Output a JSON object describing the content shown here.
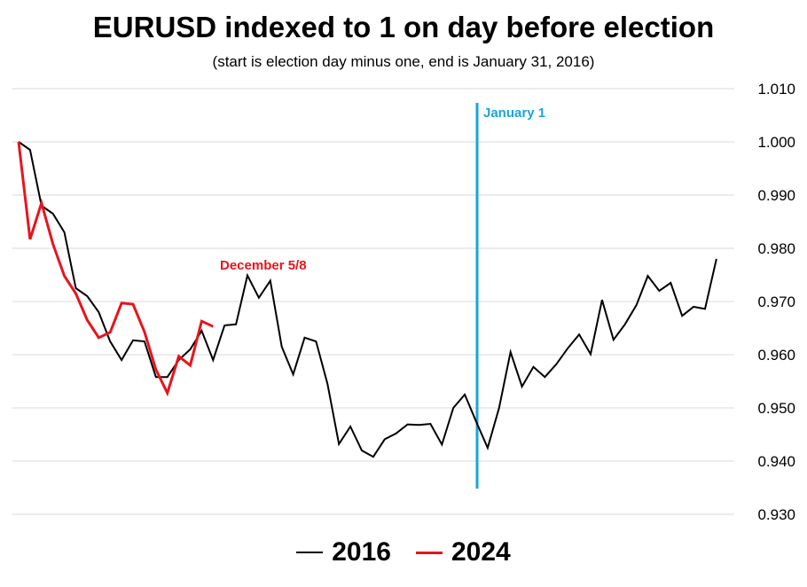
{
  "chart_data": {
    "type": "line",
    "title": "EURUSD indexed to 1 on day before election",
    "subtitle": "(start is election day minus one, end is January 31, 2016)",
    "xlabel": "",
    "ylabel": "",
    "ylim": [
      0.93,
      1.01
    ],
    "y_ticks": [
      "1.010",
      "1.000",
      "0.990",
      "0.980",
      "0.970",
      "0.960",
      "0.950",
      "0.940",
      "0.930"
    ],
    "y_tick_values": [
      1.01,
      1.0,
      0.99,
      0.98,
      0.97,
      0.96,
      0.95,
      0.94,
      0.93
    ],
    "y_axis_position": "right",
    "grid": true,
    "legend_position": "bottom",
    "x_count": 63,
    "series": [
      {
        "name": "2016",
        "color": "#000000",
        "values": [
          1.0,
          0.9985,
          0.988,
          0.9865,
          0.983,
          0.9725,
          0.971,
          0.968,
          0.9625,
          0.959,
          0.9627,
          0.9625,
          0.9558,
          0.9558,
          0.959,
          0.961,
          0.9645,
          0.959,
          0.9655,
          0.9657,
          0.9749,
          0.9707,
          0.9739,
          0.9615,
          0.9563,
          0.9632,
          0.9625,
          0.9545,
          0.9432,
          0.9465,
          0.942,
          0.9408,
          0.9441,
          0.9452,
          0.9469,
          0.9468,
          0.947,
          0.9431,
          0.95,
          0.9525,
          0.9474,
          0.9425,
          0.95,
          0.9605,
          0.954,
          0.9577,
          0.9558,
          0.9582,
          0.9612,
          0.9638,
          0.9601,
          0.9703,
          0.9628,
          0.9657,
          0.9693,
          0.9748,
          0.972,
          0.9735,
          0.9673,
          0.969,
          0.9686,
          0.978
        ]
      },
      {
        "name": "2024",
        "color": "#e8141c",
        "values": [
          1.0,
          0.9817,
          0.9885,
          0.9808,
          0.9748,
          0.9715,
          0.9665,
          0.9632,
          0.9642,
          0.9697,
          0.9695,
          0.9643,
          0.9572,
          0.9528,
          0.9597,
          0.958,
          0.9663,
          0.9653
        ]
      }
    ],
    "annotations": [
      {
        "text": "December 5/8",
        "color": "#e8141c"
      },
      {
        "text": "January 1",
        "color": "#1aa4d8",
        "x_index": 40
      }
    ]
  },
  "legend": {
    "items": [
      {
        "label": "2016",
        "color": "#000000"
      },
      {
        "label": "2024",
        "color": "#e8141c"
      }
    ]
  }
}
